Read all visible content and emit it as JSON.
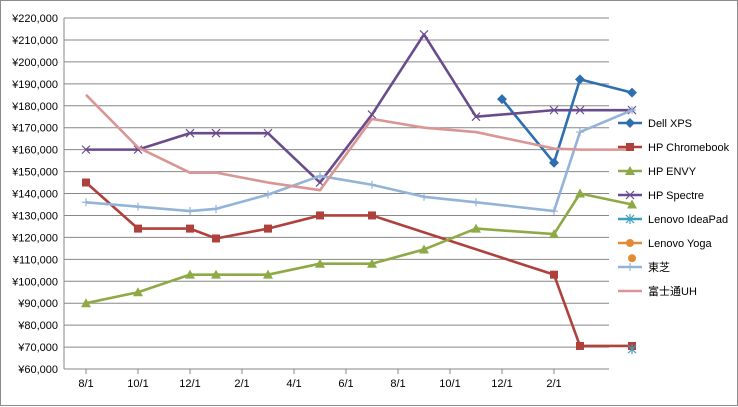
{
  "chart_data": {
    "type": "line",
    "title": "",
    "xlabel": "",
    "ylabel": "",
    "ylim": [
      60000,
      220000
    ],
    "y_tick_step": 10000,
    "y_tick_prefix": "¥",
    "x_tick_labels": [
      "8/1",
      "10/1",
      "12/1",
      "2/1",
      "4/1",
      "6/1",
      "8/1",
      "10/1",
      "12/1",
      "2/1"
    ],
    "grid": true,
    "legend_position": "right",
    "series": [
      {
        "name": "Dell XPS",
        "color": "#2e6fb0",
        "marker": "diamond",
        "points": [
          [
            16,
            183000
          ],
          [
            18,
            154000
          ],
          [
            19,
            192000
          ],
          [
            21,
            186000
          ]
        ]
      },
      {
        "name": "HP Chromebook",
        "color": "#b0403c",
        "marker": "square",
        "points": [
          [
            0,
            145000
          ],
          [
            2,
            124000
          ],
          [
            4,
            124000
          ],
          [
            5,
            119500
          ],
          [
            7,
            124000
          ],
          [
            9,
            130000
          ],
          [
            11,
            130000
          ],
          [
            18,
            103000
          ],
          [
            19,
            70500
          ],
          [
            21,
            70500
          ]
        ]
      },
      {
        "name": "HP ENVY",
        "color": "#8eaa46",
        "marker": "triangle",
        "points": [
          [
            0,
            90000
          ],
          [
            2,
            95000
          ],
          [
            4,
            103000
          ],
          [
            5,
            103000
          ],
          [
            7,
            103000
          ],
          [
            9,
            108000
          ],
          [
            11,
            108000
          ],
          [
            13,
            114500
          ],
          [
            15,
            124000
          ],
          [
            18,
            121500
          ],
          [
            19,
            140000
          ],
          [
            21,
            135000
          ]
        ]
      },
      {
        "name": "HP Spectre",
        "color": "#6a4c8c",
        "marker": "x",
        "points": [
          [
            0,
            160000
          ],
          [
            2,
            160000
          ],
          [
            4,
            167500
          ],
          [
            5,
            167500
          ],
          [
            7,
            167500
          ],
          [
            9,
            145000
          ],
          [
            11,
            176000
          ],
          [
            13,
            212500
          ],
          [
            15,
            175000
          ],
          [
            18,
            178000
          ],
          [
            19,
            178000
          ],
          [
            21,
            178000
          ]
        ]
      },
      {
        "name": "Lenovo IdeaPad",
        "color": "#3ca1b8",
        "marker": "star",
        "points": [
          [
            21,
            69000
          ]
        ]
      },
      {
        "name": "Lenovo Yoga",
        "color": "#e38a35",
        "marker": "circle",
        "points": [
          [
            21,
            110500
          ]
        ]
      },
      {
        "name": "東芝",
        "color": "#94b3d9",
        "marker": "plus",
        "points": [
          [
            0,
            136000
          ],
          [
            2,
            134000
          ],
          [
            4,
            132000
          ],
          [
            5,
            133000
          ],
          [
            7,
            139500
          ],
          [
            9,
            148000
          ],
          [
            11,
            144000
          ],
          [
            13,
            138500
          ],
          [
            15,
            136000
          ],
          [
            18,
            132000
          ],
          [
            19,
            168000
          ],
          [
            21,
            178000
          ]
        ]
      },
      {
        "name": "富士通UH",
        "color": "#d99694",
        "marker": "none",
        "points": [
          [
            0,
            185000
          ],
          [
            2,
            161000
          ],
          [
            4,
            149500
          ],
          [
            5,
            149500
          ],
          [
            7,
            145000
          ],
          [
            9,
            141500
          ],
          [
            11,
            174000
          ],
          [
            13,
            170000
          ],
          [
            15,
            168000
          ],
          [
            18,
            160500
          ],
          [
            19,
            160000
          ],
          [
            21,
            160000
          ]
        ]
      }
    ]
  }
}
